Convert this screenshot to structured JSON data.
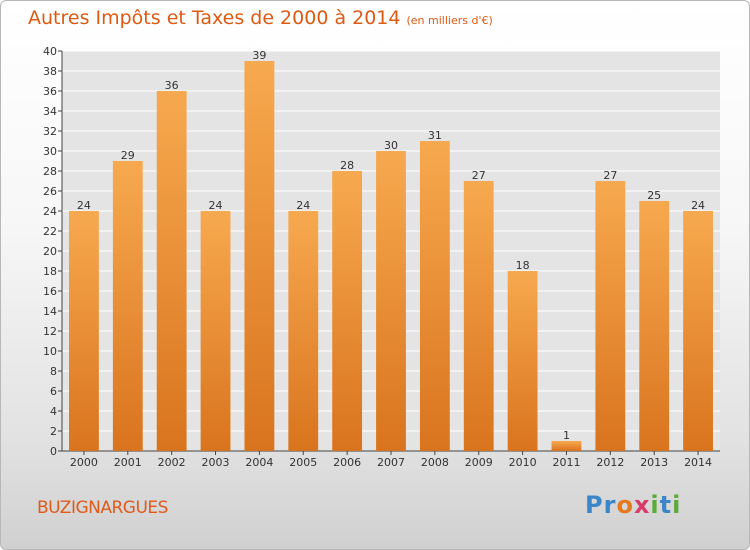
{
  "title": "Autres Impôts et Taxes de 2000 à 2014",
  "unit": "(en milliers d'€)",
  "city": "BUZIGNARGUES",
  "logo": "Proxiti",
  "colors": {
    "bar_light": "#f7a94f",
    "bar_dark": "#d9741e",
    "title": "#dd5a14"
  },
  "chart_data": {
    "type": "bar",
    "title": "Autres Impôts et Taxes de 2000 à 2014",
    "xlabel": "",
    "ylabel": "",
    "ylim": [
      0,
      40
    ],
    "yticks": [
      0,
      2,
      4,
      6,
      8,
      10,
      12,
      14,
      16,
      18,
      20,
      22,
      24,
      26,
      28,
      30,
      32,
      34,
      36,
      38,
      40
    ],
    "grid": true,
    "categories": [
      "2000",
      "2001",
      "2002",
      "2003",
      "2004",
      "2005",
      "2006",
      "2007",
      "2008",
      "2009",
      "2010",
      "2011",
      "2012",
      "2013",
      "2014"
    ],
    "values": [
      24,
      29,
      36,
      24,
      39,
      24,
      28,
      30,
      31,
      27,
      18,
      1,
      27,
      25,
      24
    ]
  }
}
